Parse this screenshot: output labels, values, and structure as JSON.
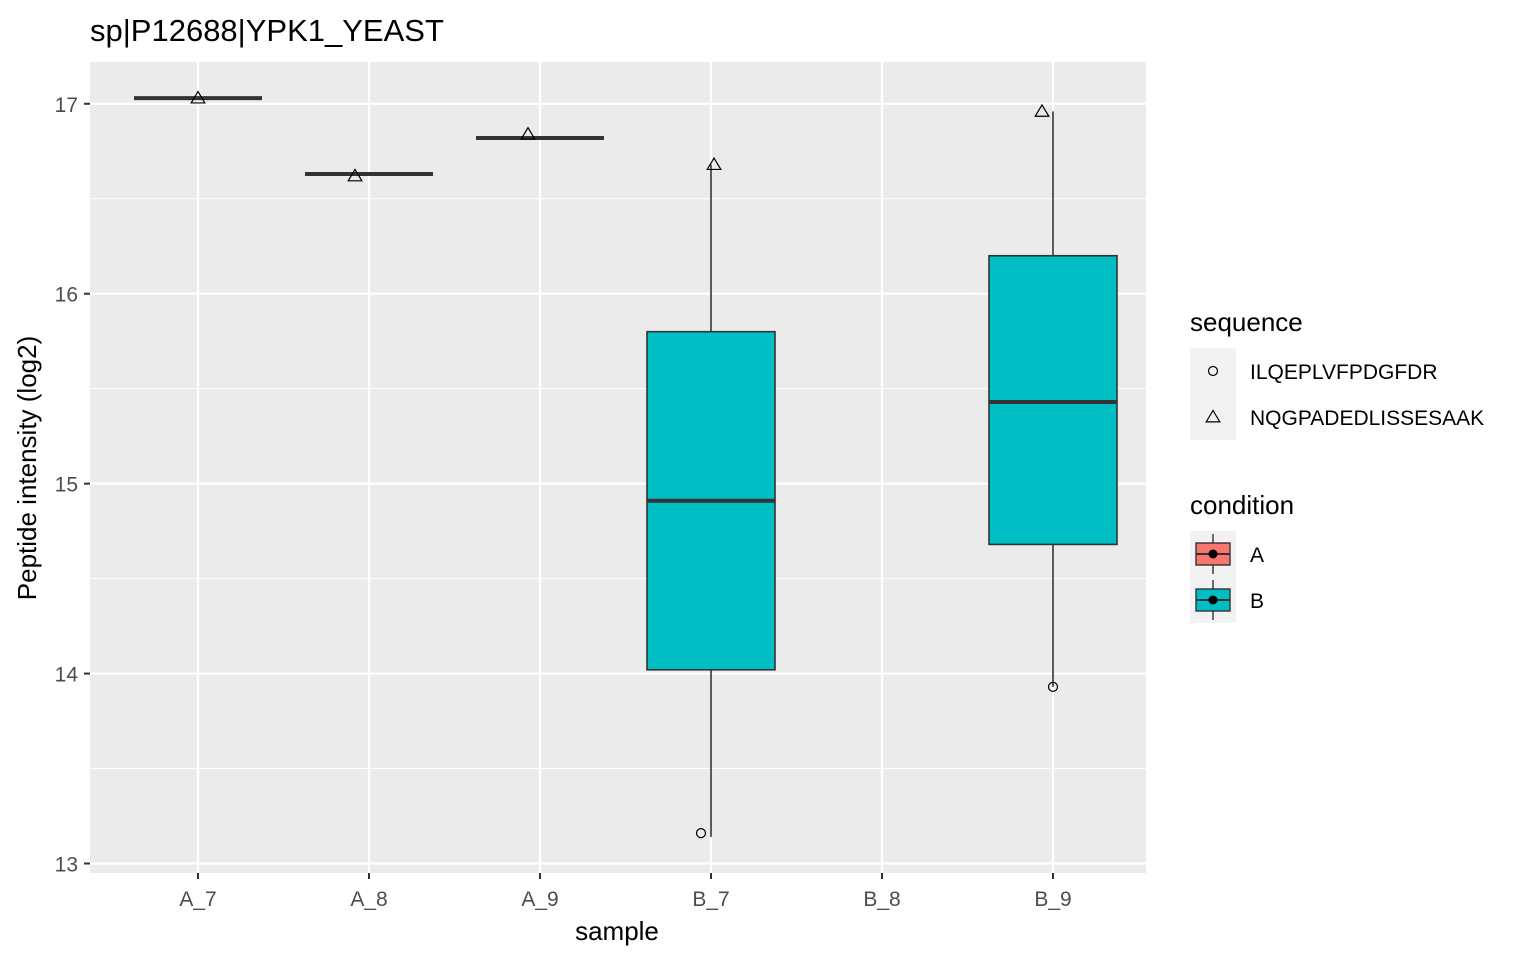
{
  "chart_data": {
    "type": "boxplot",
    "title": "sp|P12688|YPK1_YEAST",
    "xlabel": "sample",
    "ylabel": "Peptide intensity (log2)",
    "categories": [
      "A_7",
      "A_8",
      "A_9",
      "B_7",
      "B_8",
      "B_9"
    ],
    "ylim": [
      12.95,
      17.22
    ],
    "yticks": [
      13,
      14,
      15,
      16,
      17
    ],
    "grid": true,
    "boxes": [
      {
        "sample": "A_7",
        "condition": "A",
        "lower": 17.03,
        "q1": 17.03,
        "median": 17.03,
        "q3": 17.03,
        "upper": 17.03
      },
      {
        "sample": "A_8",
        "condition": "A",
        "lower": 16.63,
        "q1": 16.63,
        "median": 16.63,
        "q3": 16.63,
        "upper": 16.63
      },
      {
        "sample": "A_9",
        "condition": "A",
        "lower": 16.82,
        "q1": 16.82,
        "median": 16.82,
        "q3": 16.82,
        "upper": 16.82
      },
      {
        "sample": "B_7",
        "condition": "B",
        "lower": 13.14,
        "q1": 14.02,
        "median": 14.91,
        "q3": 15.8,
        "upper": 16.68
      },
      {
        "sample": "B_9",
        "condition": "B",
        "lower": 13.93,
        "q1": 14.68,
        "median": 15.43,
        "q3": 16.2,
        "upper": 16.96
      }
    ],
    "points": [
      {
        "sample": "A_7",
        "sequence": "NQGPADEDLISSESAAK",
        "y": 17.03
      },
      {
        "sample": "A_8",
        "sequence": "NQGPADEDLISSESAAK",
        "y": 16.62
      },
      {
        "sample": "A_9",
        "sequence": "NQGPADEDLISSESAAK",
        "y": 16.84
      },
      {
        "sample": "B_7",
        "sequence": "NQGPADEDLISSESAAK",
        "y": 16.68
      },
      {
        "sample": "B_7",
        "sequence": "ILQEPLVFPDGFDR",
        "y": 13.16
      },
      {
        "sample": "B_9",
        "sequence": "NQGPADEDLISSESAAK",
        "y": 16.96
      },
      {
        "sample": "B_9",
        "sequence": "ILQEPLVFPDGFDR",
        "y": 13.93
      }
    ],
    "legend_placement": "right",
    "legends": [
      {
        "title": "sequence",
        "entries": [
          {
            "label": "ILQEPLVFPDGFDR",
            "shape": "circle"
          },
          {
            "label": "NQGPADEDLISSESAAK",
            "shape": "triangle"
          }
        ]
      },
      {
        "title": "condition",
        "entries": [
          {
            "label": "A",
            "color": "#F8766D"
          },
          {
            "label": "B",
            "color": "#00BFC4"
          }
        ]
      }
    ],
    "colors": {
      "A": "#F8766D",
      "B": "#00BFC4",
      "panel": "#EBEBEB",
      "grid": "#FFFFFF",
      "box_line": "#333333"
    }
  }
}
